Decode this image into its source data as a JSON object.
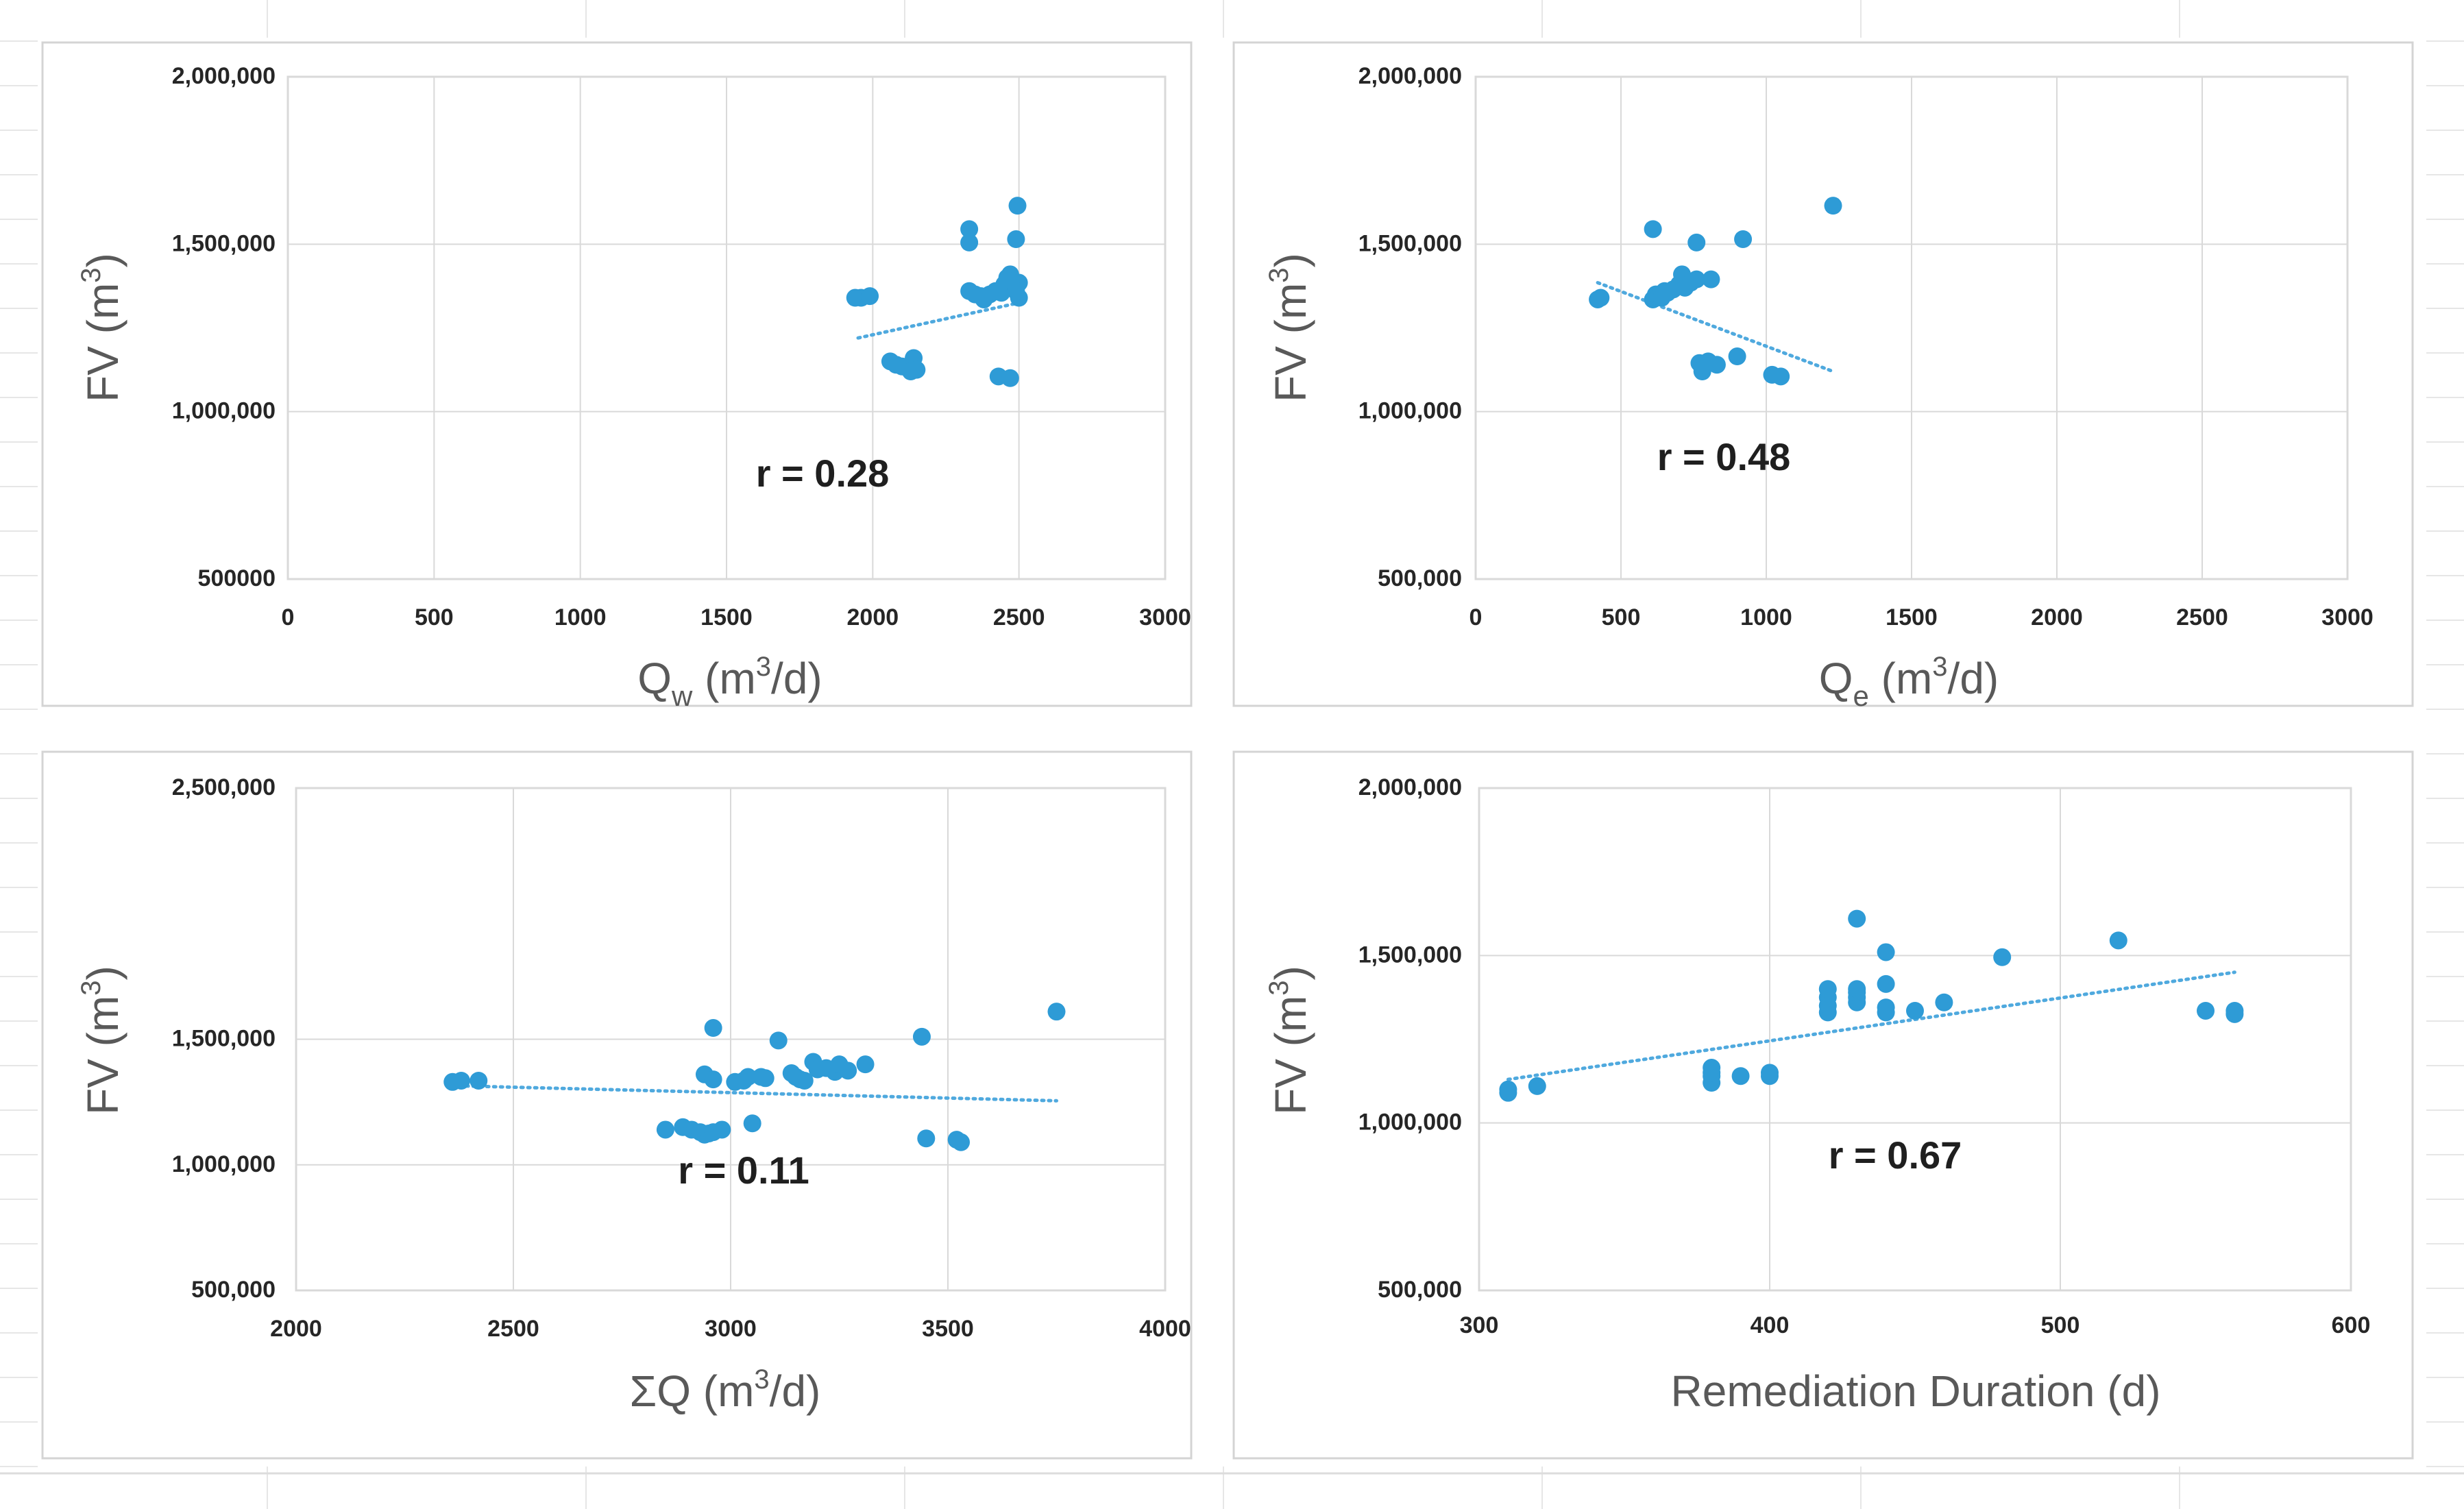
{
  "colors": {
    "marker": "#2E9BD6",
    "trend": "#4FA9DE",
    "grid": "#d9d9d9"
  },
  "chart_data": [
    {
      "type": "scatter",
      "panel": "top-left",
      "xlabel_main": "Q",
      "xlabel_sub": "w",
      "xlabel_rest": " (m",
      "xlabel_sup": "3",
      "xlabel_end": "/d)",
      "ylabel_main": "FV (m",
      "ylabel_sup": "3",
      "ylabel_end": ")",
      "xlim": [
        0,
        3000
      ],
      "ylim": [
        500000,
        2000000
      ],
      "xticks": [
        0,
        500,
        1000,
        1500,
        2000,
        2500,
        3000
      ],
      "xtick_labels": [
        "0",
        "500",
        "1000",
        "1500",
        "2000",
        "2500",
        "3000"
      ],
      "yticks": [
        500000,
        1000000,
        1500000,
        2000000
      ],
      "ytick_labels": [
        "500000",
        "1,000,000",
        "1,500,000",
        "2,000,000"
      ],
      "r_label": "r = 0.28",
      "trend": [
        [
          1950,
          1220000
        ],
        [
          2500,
          1325000
        ]
      ],
      "points": [
        [
          1940,
          1340000
        ],
        [
          1960,
          1340000
        ],
        [
          1990,
          1345000
        ],
        [
          2060,
          1150000
        ],
        [
          2080,
          1140000
        ],
        [
          2100,
          1135000
        ],
        [
          2120,
          1130000
        ],
        [
          2140,
          1160000
        ],
        [
          2130,
          1120000
        ],
        [
          2150,
          1125000
        ],
        [
          2330,
          1545000
        ],
        [
          2330,
          1505000
        ],
        [
          2330,
          1360000
        ],
        [
          2350,
          1350000
        ],
        [
          2370,
          1345000
        ],
        [
          2380,
          1335000
        ],
        [
          2400,
          1350000
        ],
        [
          2420,
          1360000
        ],
        [
          2430,
          1105000
        ],
        [
          2440,
          1355000
        ],
        [
          2450,
          1380000
        ],
        [
          2460,
          1400000
        ],
        [
          2470,
          1100000
        ],
        [
          2470,
          1410000
        ],
        [
          2480,
          1390000
        ],
        [
          2490,
          1370000
        ],
        [
          2490,
          1515000
        ],
        [
          2495,
          1615000
        ],
        [
          2500,
          1340000
        ],
        [
          2500,
          1385000
        ],
        [
          2490,
          1360000
        ]
      ]
    },
    {
      "type": "scatter",
      "panel": "top-right",
      "xlabel_main": "Q",
      "xlabel_sub": "e",
      "xlabel_rest": " (m",
      "xlabel_sup": "3",
      "xlabel_end": "/d)",
      "ylabel_main": "FV (m",
      "ylabel_sup": "3",
      "ylabel_end": ")",
      "xlim": [
        0,
        3000
      ],
      "ylim": [
        500000,
        2000000
      ],
      "xticks": [
        0,
        500,
        1000,
        1500,
        2000,
        2500,
        3000
      ],
      "xtick_labels": [
        "0",
        "500",
        "1000",
        "1500",
        "2000",
        "2500",
        "3000"
      ],
      "yticks": [
        500000,
        1000000,
        1500000,
        2000000
      ],
      "ytick_labels": [
        "500,000",
        "1,000,000",
        "1,500,000",
        "2,000,000"
      ],
      "r_label": "r = 0.48",
      "trend": [
        [
          420,
          1385000
        ],
        [
          1230,
          1120000
        ]
      ],
      "points": [
        [
          420,
          1335000
        ],
        [
          430,
          1340000
        ],
        [
          610,
          1545000
        ],
        [
          610,
          1335000
        ],
        [
          620,
          1350000
        ],
        [
          630,
          1345000
        ],
        [
          640,
          1340000
        ],
        [
          650,
          1360000
        ],
        [
          660,
          1355000
        ],
        [
          680,
          1365000
        ],
        [
          700,
          1380000
        ],
        [
          710,
          1410000
        ],
        [
          720,
          1370000
        ],
        [
          740,
          1385000
        ],
        [
          760,
          1395000
        ],
        [
          760,
          1505000
        ],
        [
          770,
          1145000
        ],
        [
          780,
          1120000
        ],
        [
          790,
          1140000
        ],
        [
          800,
          1150000
        ],
        [
          810,
          1395000
        ],
        [
          830,
          1140000
        ],
        [
          900,
          1165000
        ],
        [
          920,
          1515000
        ],
        [
          1020,
          1110000
        ],
        [
          1050,
          1105000
        ],
        [
          1230,
          1615000
        ]
      ]
    },
    {
      "type": "scatter",
      "panel": "bottom-left",
      "xlabel_main": "ΣQ",
      "xlabel_sub": "",
      "xlabel_rest": " (m",
      "xlabel_sup": "3",
      "xlabel_end": "/d)",
      "ylabel_main": "FV (m",
      "ylabel_sup": "3",
      "ylabel_end": ")",
      "xlim": [
        2000,
        4000
      ],
      "ylim": [
        500000,
        2500000
      ],
      "xticks": [
        2000,
        2500,
        3000,
        3500,
        4000
      ],
      "xtick_labels": [
        "2000",
        "2500",
        "3000",
        "3500",
        "4000"
      ],
      "yticks": [
        500000,
        1000000,
        1500000,
        2500000
      ],
      "ytick_labels": [
        "500,000",
        "1,000,000",
        "1,500,000",
        "2,500,000"
      ],
      "r_label": "r = 0.11",
      "trend": [
        [
          2360,
          1315000
        ],
        [
          3750,
          1255000
        ]
      ],
      "points": [
        [
          2360,
          1330000
        ],
        [
          2380,
          1335000
        ],
        [
          2420,
          1335000
        ],
        [
          2850,
          1140000
        ],
        [
          2890,
          1150000
        ],
        [
          2910,
          1140000
        ],
        [
          2930,
          1130000
        ],
        [
          2940,
          1120000
        ],
        [
          2950,
          1125000
        ],
        [
          2960,
          1130000
        ],
        [
          2980,
          1140000
        ],
        [
          2940,
          1360000
        ],
        [
          2960,
          1545000
        ],
        [
          2960,
          1340000
        ],
        [
          3010,
          1330000
        ],
        [
          3030,
          1335000
        ],
        [
          3040,
          1350000
        ],
        [
          3050,
          1165000
        ],
        [
          3070,
          1350000
        ],
        [
          3080,
          1345000
        ],
        [
          3110,
          1495000
        ],
        [
          3140,
          1365000
        ],
        [
          3150,
          1350000
        ],
        [
          3160,
          1340000
        ],
        [
          3170,
          1335000
        ],
        [
          3190,
          1410000
        ],
        [
          3200,
          1380000
        ],
        [
          3220,
          1385000
        ],
        [
          3240,
          1370000
        ],
        [
          3250,
          1400000
        ],
        [
          3270,
          1375000
        ],
        [
          3310,
          1400000
        ],
        [
          3440,
          1510000
        ],
        [
          3450,
          1105000
        ],
        [
          3520,
          1100000
        ],
        [
          3530,
          1090000
        ],
        [
          3750,
          1610000
        ]
      ]
    },
    {
      "type": "scatter",
      "panel": "bottom-right",
      "xlabel_main": "Remediation Duration (d)",
      "xlabel_sub": "",
      "xlabel_rest": "",
      "xlabel_sup": "",
      "xlabel_end": "",
      "ylabel_main": "FV (m",
      "ylabel_sup": "3",
      "ylabel_end": ")",
      "xlim": [
        300,
        600
      ],
      "ylim": [
        500000,
        2000000
      ],
      "xticks": [
        300,
        400,
        500,
        600
      ],
      "xtick_labels": [
        "300",
        "400",
        "500",
        "600"
      ],
      "yticks": [
        500000,
        1000000,
        1500000,
        2000000
      ],
      "ytick_labels": [
        "500,000",
        "1,000,000",
        "1,500,000",
        "2,000,000"
      ],
      "r_label": "r = 0.67",
      "trend": [
        [
          310,
          1130000
        ],
        [
          560,
          1450000
        ]
      ],
      "points": [
        [
          310,
          1090000
        ],
        [
          310,
          1100000
        ],
        [
          320,
          1110000
        ],
        [
          380,
          1120000
        ],
        [
          380,
          1140000
        ],
        [
          380,
          1150000
        ],
        [
          380,
          1165000
        ],
        [
          390,
          1140000
        ],
        [
          400,
          1140000
        ],
        [
          400,
          1150000
        ],
        [
          420,
          1330000
        ],
        [
          420,
          1350000
        ],
        [
          420,
          1375000
        ],
        [
          420,
          1400000
        ],
        [
          430,
          1360000
        ],
        [
          430,
          1375000
        ],
        [
          430,
          1390000
        ],
        [
          430,
          1400000
        ],
        [
          430,
          1610000
        ],
        [
          440,
          1330000
        ],
        [
          440,
          1345000
        ],
        [
          440,
          1415000
        ],
        [
          440,
          1510000
        ],
        [
          450,
          1335000
        ],
        [
          460,
          1360000
        ],
        [
          480,
          1495000
        ],
        [
          520,
          1545000
        ],
        [
          550,
          1335000
        ],
        [
          560,
          1325000
        ],
        [
          560,
          1335000
        ]
      ]
    }
  ]
}
